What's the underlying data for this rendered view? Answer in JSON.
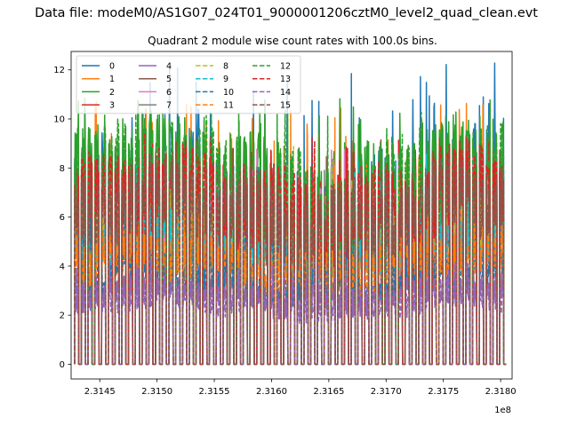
{
  "figure": {
    "suptitle": "Data file: modeM0/AS1G07_024T01_9000001206cztM0_level2_quad_clean.evt",
    "offset_label": "1e8"
  },
  "chart_data": {
    "type": "line",
    "title": "Quadrant 2 module wise count rates with 100.0s bins.",
    "xlabel": "",
    "ylabel": "",
    "xlim": [
      231425000,
      231810000
    ],
    "ylim": [
      -0.6,
      12.75
    ],
    "x_ticks": [
      231450000,
      231500000,
      231550000,
      231600000,
      231650000,
      231700000,
      231750000,
      231800000
    ],
    "x_tick_labels": [
      "2.3145",
      "2.3150",
      "2.3155",
      "2.3160",
      "2.3165",
      "2.3170",
      "2.3175",
      "2.3180"
    ],
    "y_ticks": [
      0,
      2,
      4,
      6,
      8,
      10,
      12
    ],
    "y_tick_labels": [
      "0",
      "2",
      "4",
      "6",
      "8",
      "10",
      "12"
    ],
    "data_x_range": [
      231428000,
      231805000
    ],
    "legend": {
      "placement": "top-left",
      "columns": 4
    },
    "series": [
      {
        "name": "0",
        "color": "#1f77b4",
        "dash": "solid",
        "level": 7.0,
        "peak": 12.1
      },
      {
        "name": "1",
        "color": "#ff7f0e",
        "dash": "solid",
        "level": 4.5,
        "peak": 10.5
      },
      {
        "name": "2",
        "color": "#2ca02c",
        "dash": "solid",
        "level": 7.6,
        "peak": 10.7
      },
      {
        "name": "3",
        "color": "#d62728",
        "dash": "solid",
        "level": 6.4,
        "peak": 9.0
      },
      {
        "name": "4",
        "color": "#9467bd",
        "dash": "solid",
        "level": 2.9,
        "peak": 4.6
      },
      {
        "name": "5",
        "color": "#8c564b",
        "dash": "solid",
        "level": 6.2,
        "peak": 8.4
      },
      {
        "name": "6",
        "color": "#e377c2",
        "dash": "solid",
        "level": 6.0,
        "peak": 8.6
      },
      {
        "name": "7",
        "color": "#7f7f7f",
        "dash": "solid",
        "level": 5.8,
        "peak": 8.0
      },
      {
        "name": "8",
        "color": "#bcbd22",
        "dash": "dashed",
        "level": 5.5,
        "peak": 8.8
      },
      {
        "name": "9",
        "color": "#17becf",
        "dash": "dashed",
        "level": 4.8,
        "peak": 8.5
      },
      {
        "name": "10",
        "color": "#1f77b4",
        "dash": "dashed",
        "level": 3.6,
        "peak": 7.2
      },
      {
        "name": "11",
        "color": "#ff7f0e",
        "dash": "dashed",
        "level": 4.2,
        "peak": 8.0
      },
      {
        "name": "12",
        "color": "#2ca02c",
        "dash": "dashed",
        "level": 7.3,
        "peak": 10.2
      },
      {
        "name": "13",
        "color": "#d62728",
        "dash": "dashed",
        "level": 6.6,
        "peak": 9.2
      },
      {
        "name": "14",
        "color": "#9467bd",
        "dash": "dashed",
        "level": 2.6,
        "peak": 4.2
      },
      {
        "name": "15",
        "color": "#8c564b",
        "dash": "dashed",
        "level": 6.3,
        "peak": 8.0
      }
    ]
  }
}
